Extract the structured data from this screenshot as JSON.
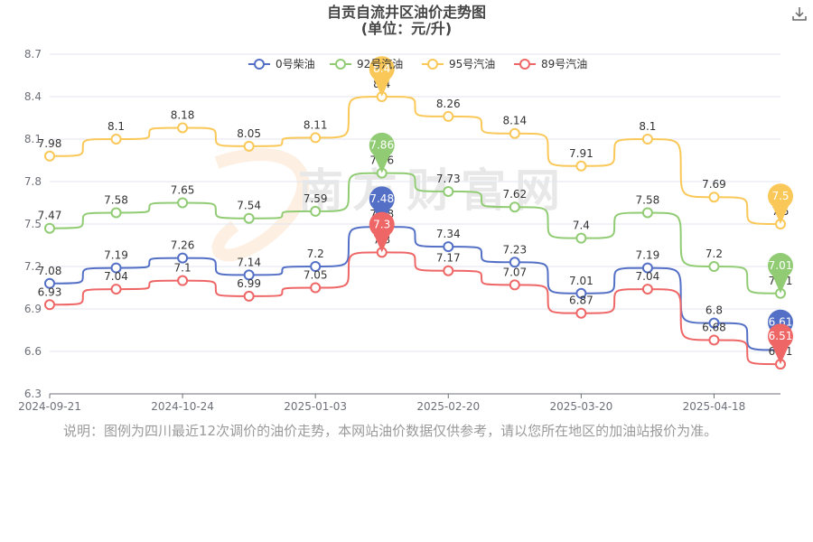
{
  "title": "自贡自流井区油价走势图",
  "subtitle": "(单位：元/升)",
  "note": "说明：图例为四川最近12次调价的油价走势，本网站油价数据仅供参考，请以您所在地区的加油站报价为准。",
  "watermark": "南方财富网",
  "icons": {
    "download": "download-icon"
  },
  "chart_data": {
    "type": "line",
    "title": "自贡自流井区油价走势图",
    "subtitle": "(单位：元/升)",
    "xlabel": "",
    "ylabel": "",
    "ylim": [
      6.3,
      8.7
    ],
    "yticks": [
      "6.3",
      "6.6",
      "6.9",
      "7.2",
      "7.5",
      "7.8",
      "8.1",
      "8.4",
      "8.7"
    ],
    "xtick_labels": [
      "2024-09-21",
      "2024-10-24",
      "2025-01-03",
      "2025-02-20",
      "2025-03-20",
      "2025-04-18"
    ],
    "xtick_indices": [
      0,
      2,
      4,
      6,
      8,
      10
    ],
    "categories": [
      "2024-09-21",
      "",
      "2024-10-24",
      "",
      "2025-01-03",
      "",
      "2025-02-20",
      "",
      "2025-03-20",
      "",
      "2025-04-18",
      ""
    ],
    "grid": true,
    "legend_position": "top",
    "series": [
      {
        "name": "0号柴油",
        "color": "#5470c6",
        "values": [
          7.08,
          7.19,
          7.26,
          7.14,
          7.2,
          7.48,
          7.34,
          7.23,
          7.01,
          7.19,
          6.8,
          6.61
        ]
      },
      {
        "name": "92号汽油",
        "color": "#91cc75",
        "values": [
          7.47,
          7.58,
          7.65,
          7.54,
          7.59,
          7.86,
          7.73,
          7.62,
          7.4,
          7.58,
          7.2,
          7.01
        ]
      },
      {
        "name": "95号汽油",
        "color": "#fac858",
        "values": [
          7.98,
          8.1,
          8.18,
          8.05,
          8.11,
          8.4,
          8.26,
          8.14,
          7.91,
          8.1,
          7.69,
          7.5
        ]
      },
      {
        "name": "89号汽油",
        "color": "#ee6666",
        "values": [
          6.93,
          7.04,
          7.1,
          6.99,
          7.05,
          7.3,
          7.17,
          7.07,
          6.87,
          7.04,
          6.68,
          6.51
        ]
      }
    ],
    "max_markers": [
      {
        "series": 0,
        "index": 5,
        "label": "7.48"
      },
      {
        "series": 1,
        "index": 5,
        "label": "7.86"
      },
      {
        "series": 2,
        "index": 5,
        "label": "8.4"
      },
      {
        "series": 3,
        "index": 5,
        "label": "7.3"
      }
    ],
    "min_markers": [
      {
        "series": 0,
        "index": 11,
        "label": "6.61"
      },
      {
        "series": 1,
        "index": 11,
        "label": "7.01"
      },
      {
        "series": 2,
        "index": 11,
        "label": "7.5"
      },
      {
        "series": 3,
        "index": 11,
        "label": "6.51"
      }
    ]
  }
}
